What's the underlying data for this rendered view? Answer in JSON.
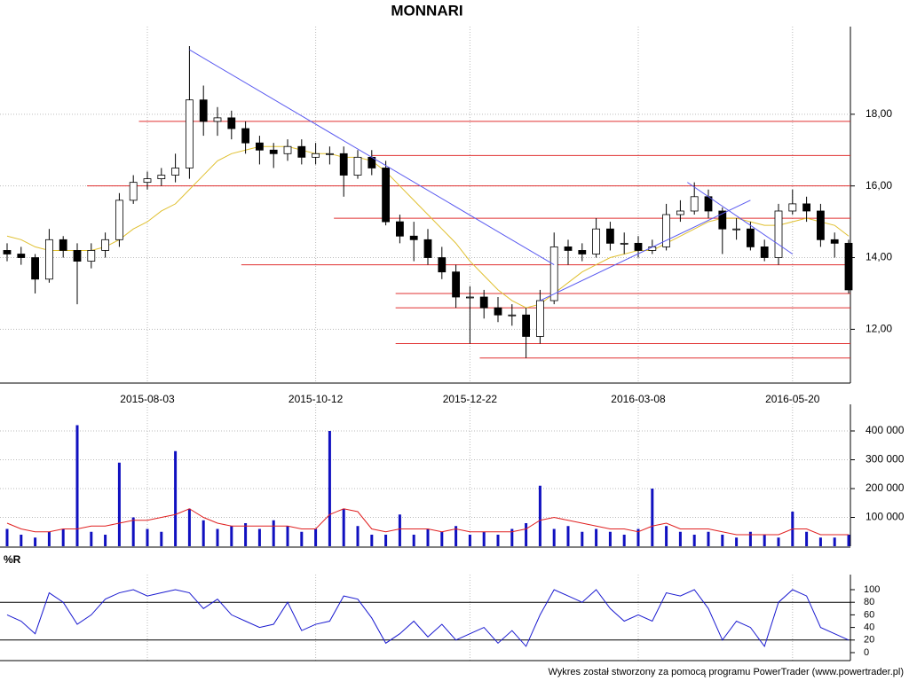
{
  "chart_data": [
    {
      "type": "candlestick",
      "title": "MONNARI",
      "categories": [
        null,
        null,
        null,
        null,
        null,
        null,
        null,
        null,
        null,
        null,
        "2015-08-03",
        null,
        null,
        null,
        null,
        null,
        null,
        null,
        null,
        null,
        null,
        null,
        "2015-10-12",
        null,
        null,
        null,
        null,
        null,
        null,
        null,
        null,
        null,
        null,
        "2015-12-22",
        null,
        null,
        null,
        null,
        null,
        null,
        null,
        null,
        null,
        null,
        null,
        "2016-03-08",
        null,
        null,
        null,
        null,
        null,
        null,
        null,
        null,
        null,
        null,
        "2016-05-20",
        null,
        null,
        null,
        null
      ],
      "open": [
        14.2,
        14.1,
        14.0,
        13.4,
        14.5,
        14.2,
        13.9,
        14.2,
        14.5,
        15.6,
        16.1,
        16.2,
        16.3,
        16.5,
        18.4,
        17.8,
        17.9,
        17.6,
        17.2,
        17.0,
        16.9,
        17.1,
        16.8,
        16.9,
        16.9,
        16.3,
        16.8,
        16.5,
        15.0,
        14.6,
        14.5,
        14.0,
        13.6,
        12.9,
        12.9,
        12.6,
        12.4,
        12.4,
        11.8,
        12.8,
        14.3,
        14.2,
        14.1,
        14.8,
        14.4,
        14.4,
        14.2,
        14.3,
        15.2,
        15.3,
        15.7,
        15.3,
        14.8,
        14.8,
        14.3,
        14.0,
        15.3,
        15.5,
        15.3,
        14.5,
        14.4
      ],
      "high": [
        14.4,
        14.3,
        14.1,
        14.8,
        14.6,
        14.4,
        14.4,
        14.7,
        15.8,
        16.3,
        16.4,
        16.5,
        16.9,
        19.9,
        18.8,
        18.2,
        18.1,
        17.8,
        17.4,
        17.2,
        17.3,
        17.3,
        17.2,
        17.1,
        17.1,
        17.0,
        17.0,
        16.7,
        15.2,
        15.0,
        14.8,
        14.3,
        13.8,
        13.2,
        13.1,
        12.9,
        12.7,
        12.6,
        13.1,
        14.7,
        14.5,
        14.4,
        15.1,
        15.0,
        14.7,
        14.6,
        14.5,
        15.5,
        15.6,
        16.1,
        15.9,
        15.4,
        15.1,
        15.0,
        14.5,
        15.5,
        15.9,
        15.7,
        15.5,
        14.7,
        14.5
      ],
      "low": [
        13.9,
        13.8,
        13.0,
        13.3,
        14.0,
        12.7,
        13.7,
        14.0,
        14.3,
        15.5,
        15.9,
        16.0,
        16.1,
        16.2,
        17.4,
        17.4,
        17.3,
        16.9,
        16.6,
        16.5,
        16.7,
        16.6,
        16.6,
        16.6,
        15.7,
        16.2,
        16.3,
        14.9,
        14.4,
        13.9,
        13.8,
        13.4,
        12.6,
        11.6,
        12.3,
        12.2,
        12.1,
        11.2,
        11.6,
        12.7,
        13.8,
        13.9,
        14.0,
        14.2,
        14.1,
        14.0,
        14.1,
        14.2,
        15.0,
        15.2,
        15.1,
        14.1,
        14.5,
        14.2,
        13.9,
        13.8,
        15.2,
        15.0,
        14.3,
        14.0,
        13.0
      ],
      "close": [
        14.1,
        14.0,
        13.4,
        14.5,
        14.2,
        13.9,
        14.2,
        14.5,
        15.6,
        16.1,
        16.2,
        16.3,
        16.5,
        18.4,
        17.8,
        17.9,
        17.6,
        17.2,
        17.0,
        16.9,
        17.1,
        16.8,
        16.9,
        16.9,
        16.3,
        16.8,
        16.5,
        15.0,
        14.6,
        14.5,
        14.0,
        13.6,
        12.9,
        12.9,
        12.6,
        12.4,
        12.4,
        11.8,
        12.8,
        14.3,
        14.2,
        14.1,
        14.8,
        14.4,
        14.4,
        14.2,
        14.3,
        15.2,
        15.3,
        15.7,
        15.3,
        14.8,
        14.8,
        14.3,
        14.0,
        15.3,
        15.5,
        15.3,
        14.5,
        14.4,
        13.1
      ],
      "lines": [
        {
          "color": "#e0c030",
          "values": [
            14.6,
            14.5,
            14.3,
            14.2,
            14.2,
            14.2,
            14.2,
            14.3,
            14.5,
            14.8,
            15.0,
            15.3,
            15.5,
            15.9,
            16.3,
            16.7,
            16.9,
            17.0,
            17.1,
            17.1,
            17.1,
            17.0,
            16.9,
            16.9,
            16.8,
            16.8,
            16.7,
            16.4,
            16.0,
            15.6,
            15.2,
            14.8,
            14.4,
            13.9,
            13.5,
            13.1,
            12.8,
            12.6,
            12.7,
            13.0,
            13.3,
            13.6,
            13.8,
            14.0,
            14.1,
            14.2,
            14.2,
            14.4,
            14.6,
            14.8,
            15.0,
            15.1,
            15.1,
            15.0,
            14.9,
            14.9,
            15.0,
            15.1,
            15.0,
            14.9,
            14.6
          ]
        }
      ],
      "levels_color": "#e03030",
      "levels": [
        {
          "value": 17.8,
          "from": 9.4
        },
        {
          "value": 16.85,
          "from": 26
        },
        {
          "value": 16.0,
          "from": 5.7
        },
        {
          "value": 15.1,
          "from": 23.3
        },
        {
          "value": 13.8,
          "from": 16.7
        },
        {
          "value": 13.0,
          "from": 27.7
        },
        {
          "value": 12.6,
          "from": 27.7
        },
        {
          "value": 11.6,
          "from": 27.7
        },
        {
          "value": 11.2,
          "from": 33.7
        }
      ],
      "trend_color": "#5a5af0",
      "trendlines": [
        {
          "x": [
            13,
            39
          ],
          "y": [
            19.8,
            13.8
          ]
        },
        {
          "x": [
            38,
            53
          ],
          "y": [
            12.8,
            15.6
          ]
        },
        {
          "x": [
            48.5,
            56
          ],
          "y": [
            16.1,
            14.1
          ]
        }
      ],
      "ylim": [
        10.5,
        20
      ],
      "yticks": [
        {
          "value": 12,
          "label": "12,00"
        },
        {
          "value": 14,
          "label": "14,00"
        },
        {
          "value": 16,
          "label": "16,00"
        },
        {
          "value": 18,
          "label": "18,00"
        }
      ]
    },
    {
      "type": "bar",
      "color": "#1010c0",
      "values": [
        60000,
        40000,
        30000,
        50000,
        60000,
        420000,
        50000,
        40000,
        290000,
        100000,
        60000,
        50000,
        330000,
        130000,
        90000,
        60000,
        70000,
        80000,
        60000,
        90000,
        70000,
        50000,
        60000,
        400000,
        130000,
        70000,
        40000,
        40000,
        110000,
        40000,
        60000,
        50000,
        70000,
        40000,
        50000,
        40000,
        60000,
        80000,
        210000,
        60000,
        70000,
        50000,
        60000,
        50000,
        40000,
        60000,
        200000,
        70000,
        50000,
        40000,
        50000,
        40000,
        30000,
        50000,
        40000,
        30000,
        120000,
        50000,
        30000,
        30000,
        40000
      ],
      "lines": [
        {
          "color": "#e02020",
          "values": [
            80000,
            60000,
            50000,
            50000,
            60000,
            60000,
            70000,
            70000,
            80000,
            90000,
            90000,
            100000,
            110000,
            130000,
            100000,
            80000,
            70000,
            70000,
            70000,
            70000,
            70000,
            60000,
            60000,
            110000,
            130000,
            120000,
            60000,
            50000,
            60000,
            60000,
            60000,
            50000,
            60000,
            50000,
            50000,
            50000,
            50000,
            60000,
            90000,
            100000,
            90000,
            80000,
            70000,
            60000,
            60000,
            50000,
            70000,
            80000,
            60000,
            60000,
            60000,
            50000,
            40000,
            40000,
            40000,
            40000,
            60000,
            60000,
            40000,
            40000,
            40000
          ]
        }
      ],
      "ylim": [
        0,
        480000
      ],
      "yticks": [
        {
          "value": 100000,
          "label": "100 000"
        },
        {
          "value": 200000,
          "label": "200 000"
        },
        {
          "value": 300000,
          "label": "300 000"
        },
        {
          "value": 400000,
          "label": "400 000"
        }
      ]
    },
    {
      "type": "line",
      "title": "%R",
      "color": "#1a1ad0",
      "values": [
        60,
        50,
        30,
        95,
        80,
        45,
        60,
        85,
        95,
        100,
        90,
        95,
        100,
        95,
        70,
        85,
        60,
        50,
        40,
        45,
        80,
        35,
        45,
        50,
        90,
        85,
        55,
        15,
        30,
        50,
        25,
        45,
        20,
        30,
        40,
        15,
        35,
        10,
        60,
        100,
        90,
        80,
        100,
        70,
        50,
        60,
        50,
        95,
        90,
        100,
        70,
        20,
        50,
        40,
        10,
        80,
        100,
        90,
        40,
        30,
        20
      ],
      "levels": [
        20,
        80
      ],
      "ylim": [
        0,
        100
      ],
      "yticks": [
        0,
        20,
        40,
        60,
        80,
        100
      ]
    }
  ],
  "footer": "Wykres został stworzony za pomocą programu PowerTrader (www.powertrader.pl)"
}
